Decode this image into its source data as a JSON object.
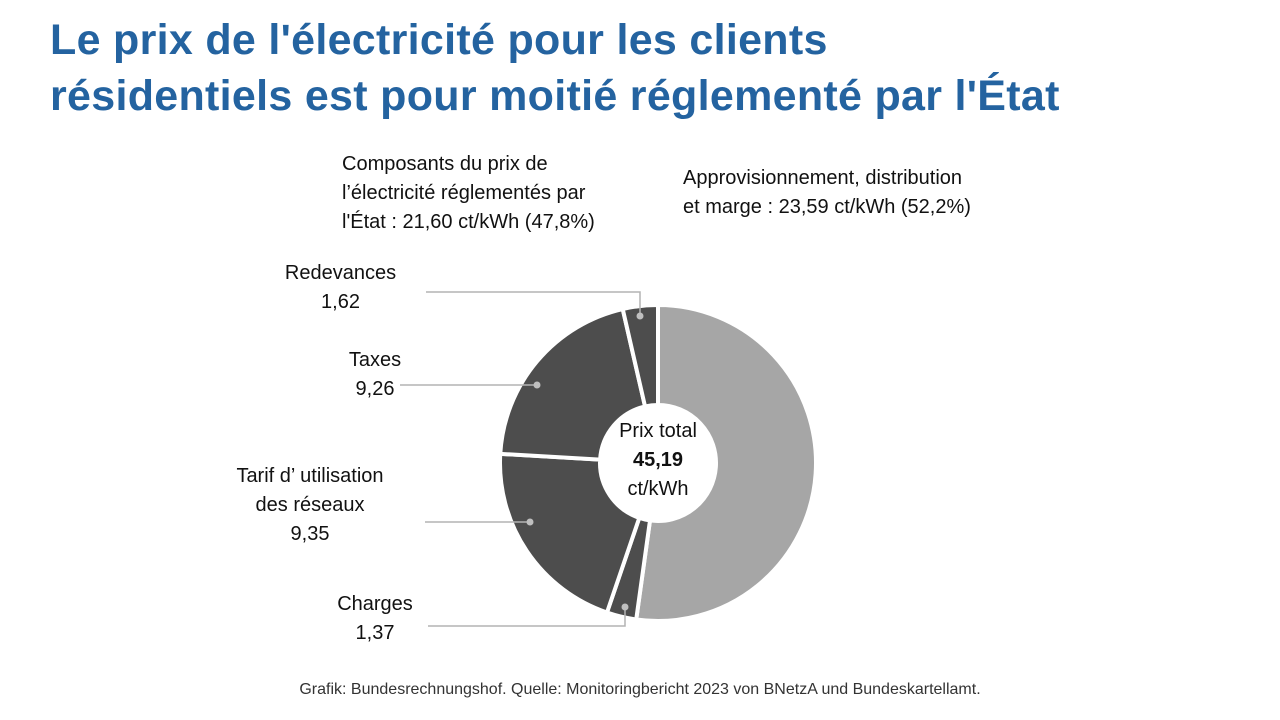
{
  "title": {
    "line1": "Le prix de l'électricité pour les clients",
    "line2": "résidentiels est pour moitié réglementé par l'État"
  },
  "headers": {
    "regulated": {
      "line1": "Composants du prix de",
      "line2": "l’électricité réglementés par",
      "line3": "l'État : 21,60 ct/kWh (47,8%)"
    },
    "market": {
      "line1": "Approvisionnement, distribution",
      "line2": "et marge  : 23,59 ct/kWh (52,2%)"
    }
  },
  "center": {
    "label": "Prix total",
    "value": "45,19",
    "unit": "ct/kWh"
  },
  "source": "Grafik: Bundesrechnungshof. Quelle: Monitoringbericht 2023 von BNetzA und Bundeskartellamt.",
  "colors": {
    "title": "#2463a0",
    "regulated_slice": "#4d4d4d",
    "market_slice": "#a6a6a6",
    "leader": "#b3b3b3",
    "marker": "#bfbfbf"
  },
  "chart_data": {
    "type": "pie",
    "variant": "donut",
    "title": "Prix total 45,19 ct/kWh",
    "unit": "ct/kWh",
    "total": 45.19,
    "slices": [
      {
        "name": "Approvisionnement, distribution et marge",
        "value": 23.59,
        "label_lines": [],
        "group": "market"
      },
      {
        "name": "Charges",
        "value": 1.37,
        "label_lines": [
          "Charges",
          "1,37"
        ],
        "group": "regulated"
      },
      {
        "name": "Tarif d’ utilisation des réseaux",
        "value": 9.35,
        "label_lines": [
          "Tarif d’ utilisation",
          "des réseaux",
          "9,35"
        ],
        "group": "regulated"
      },
      {
        "name": "Taxes",
        "value": 9.26,
        "label_lines": [
          "Taxes",
          "9,26"
        ],
        "group": "regulated"
      },
      {
        "name": "Redevances",
        "value": 1.62,
        "label_lines": [
          "Redevances",
          "1,62"
        ],
        "group": "regulated"
      }
    ]
  }
}
